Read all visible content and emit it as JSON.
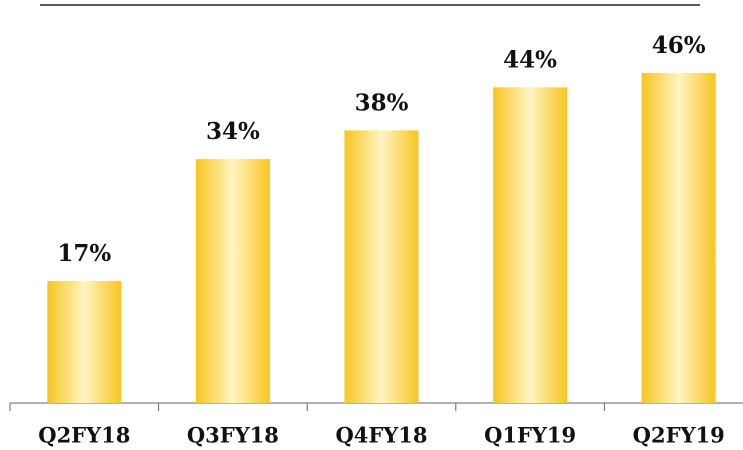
{
  "chart_data": {
    "type": "bar",
    "categories": [
      "Q2FY18",
      "Q3FY18",
      "Q4FY18",
      "Q1FY19",
      "Q2FY19"
    ],
    "values": [
      17,
      34,
      38,
      44,
      46
    ],
    "value_labels": [
      "17%",
      "34%",
      "38%",
      "44%",
      "46%"
    ],
    "color": "#f7c520"
  }
}
